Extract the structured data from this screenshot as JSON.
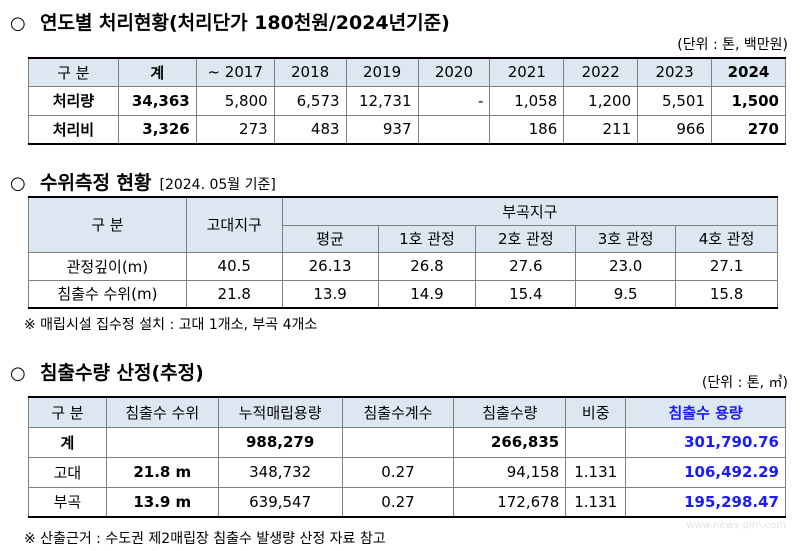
{
  "section1": {
    "bullet": "○",
    "title": "연도별 처리현황(처리단가 180천원/2024년기준)",
    "unit": "(단위 : 톤, 백만원)",
    "headers": [
      "구 분",
      "계",
      "~ 2017",
      "2018",
      "2019",
      "2020",
      "2021",
      "2022",
      "2023",
      "2024"
    ],
    "rows": [
      [
        "처리량",
        "34,363",
        "5,800",
        "6,573",
        "12,731",
        "-",
        "1,058",
        "1,200",
        "5,501",
        "1,500"
      ],
      [
        "처리비",
        "3,326",
        "273",
        "483",
        "937",
        "",
        "186",
        "211",
        "966",
        "270"
      ]
    ]
  },
  "section2": {
    "bullet": "○",
    "title": "수위측정 현황",
    "subtitle": "[2024. 05월 기준]",
    "header": {
      "category": "구 분",
      "godae": "고대지구",
      "bugok": "부곡지구",
      "bugok_cols": [
        "평균",
        "1호 관정",
        "2호 관정",
        "3호 관정",
        "4호 관정"
      ]
    },
    "rows": [
      [
        "관정깊이(m)",
        "40.5",
        "26.13",
        "26.8",
        "27.6",
        "23.0",
        "27.1"
      ],
      [
        "침출수 수위(m)",
        "21.8",
        "13.9",
        "14.9",
        "15.4",
        "9.5",
        "15.8"
      ]
    ],
    "note": "※ 매립시설 집수정 설치 : 고대 1개소, 부곡 4개소"
  },
  "section3": {
    "bullet": "○",
    "title": "침출수량 산정(추정)",
    "unit": "(단위 : 톤, ㎥)",
    "headers": [
      "구 분",
      "침출수 수위",
      "누적매립용량",
      "침출수계수",
      "침출수량",
      "비중",
      "침출수 용량"
    ],
    "rows": [
      [
        "계",
        "",
        "988,279",
        "",
        "266,835",
        "",
        "301,790.76"
      ],
      [
        "고대",
        "21.8 m",
        "348,732",
        "0.27",
        "94,158",
        "1.131",
        "106,492.29"
      ],
      [
        "부곡",
        "13.9 m",
        "639,547",
        "0.27",
        "172,678",
        "1.131",
        "195,298.47"
      ]
    ],
    "note": "※ 산출근거 : 수도권 제2매립장 침출수 발생량 산정 자료 참고"
  },
  "watermark": "www.news-pim.com",
  "colors": {
    "header_bg": "#dde7f2",
    "highlight_blue": "#1a1aff"
  }
}
